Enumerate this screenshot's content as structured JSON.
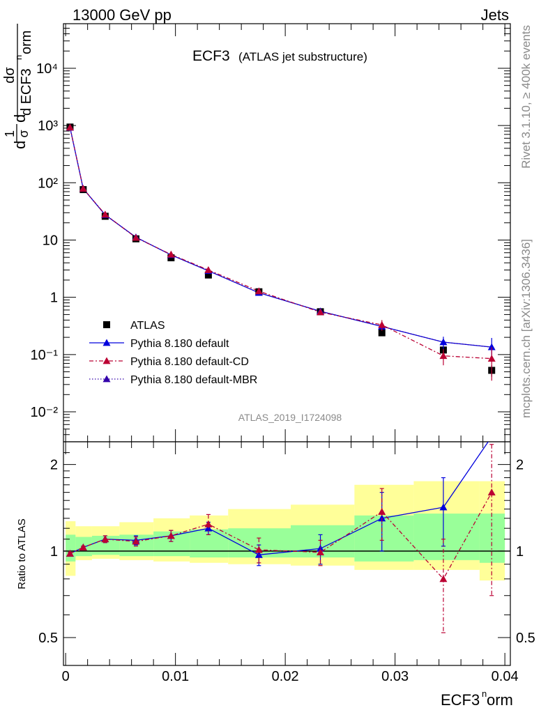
{
  "header": {
    "left": "13000 GeV pp",
    "right": "Jets"
  },
  "title": {
    "main": "ECF3",
    "sub": "(ATLAS jet substructure)"
  },
  "side_text": {
    "top": "Rivet 3.1.10, ≥ 400k events",
    "bottom": "mcplots.cern.ch [arXiv:1306.3436]"
  },
  "analysis_tag": "ATLAS_2019_I1724098",
  "chart_data": [
    {
      "type": "scatter",
      "panel": "main",
      "ylabel_lines": [
        "1",
        "σ",
        "dσ",
        "d ECF3",
        "n",
        "orm"
      ],
      "yscale": "log",
      "ylim": [
        0.003,
        60000
      ],
      "y_tick_labels": [
        "10⁻²",
        "10⁻¹",
        "1",
        "10",
        "10²",
        "10³",
        "10⁴"
      ],
      "x": [
        0.0004,
        0.0016,
        0.0036,
        0.0064,
        0.0096,
        0.013,
        0.0176,
        0.0232,
        0.0288,
        0.0344,
        0.0388
      ],
      "xerr_edges": [
        0.0,
        0.0009,
        0.0024,
        0.0049,
        0.008,
        0.0113,
        0.0148,
        0.0205,
        0.0263,
        0.0317,
        0.0377,
        0.04
      ],
      "series": [
        {
          "name": "ATLAS",
          "color": "#000000",
          "marker": "square",
          "values": [
            940,
            76,
            26,
            10.5,
            4.9,
            2.45,
            1.25,
            0.56,
            0.24,
            0.12,
            0.053
          ],
          "err_up": [
            40,
            3,
            1,
            0.4,
            0.2,
            0.1,
            0.06,
            0.03,
            0.02,
            0.02,
            0.012
          ],
          "err_down": [
            40,
            3,
            1,
            0.4,
            0.2,
            0.1,
            0.06,
            0.03,
            0.02,
            0.02,
            0.012
          ]
        },
        {
          "name": "Pythia 8.180 default",
          "color": "#0000dd",
          "marker": "triangle",
          "line": "solid",
          "values": [
            920,
            79,
            27.5,
            11.2,
            5.5,
            2.9,
            1.2,
            0.57,
            0.31,
            0.165,
            0.135
          ],
          "err_up": [
            10,
            1,
            0.5,
            0.3,
            0.2,
            0.1,
            0.05,
            0.03,
            0.03,
            0.04,
            0.06
          ],
          "err_down": [
            10,
            1,
            0.5,
            0.3,
            0.2,
            0.1,
            0.05,
            0.03,
            0.03,
            0.04,
            0.06
          ]
        },
        {
          "name": "Pythia 8.180 default-CD",
          "color": "#bb0033",
          "marker": "triangle",
          "line": "dashdot",
          "values": [
            925,
            79,
            28,
            11.0,
            5.6,
            3.0,
            1.28,
            0.55,
            0.33,
            0.095,
            0.085
          ],
          "err_up": [
            10,
            1,
            0.5,
            0.3,
            0.2,
            0.12,
            0.06,
            0.03,
            0.07,
            0.03,
            0.05
          ],
          "err_down": [
            10,
            1,
            0.5,
            0.3,
            0.2,
            0.12,
            0.06,
            0.03,
            0.07,
            0.03,
            0.05
          ]
        },
        {
          "name": "Pythia 8.180 default-MBR",
          "color": "#3300aa",
          "marker": "triangle",
          "line": "dotted",
          "values": [
            920,
            79,
            27.5,
            11.2,
            5.5,
            2.9,
            1.2,
            0.57,
            0.31,
            0.165,
            0.135
          ],
          "err_up": [],
          "err_down": []
        }
      ],
      "legend_position": "lower-left"
    },
    {
      "type": "line",
      "panel": "ratio",
      "ylabel": "Ratio to ATLAS",
      "yscale": "log",
      "ylim": [
        0.4,
        2.4
      ],
      "y_tick_labels": [
        "0.5",
        "1",
        "2"
      ],
      "xlim": [
        -0.0002,
        0.0405
      ],
      "x_tick_labels": [
        "0",
        "0.01",
        "0.02",
        "0.03",
        "0.04"
      ],
      "xlabel_main": "ECF3",
      "xlabel_sup": "n",
      "xlabel_tail": "orm",
      "band_edges": [
        0.0,
        0.0009,
        0.0024,
        0.0049,
        0.008,
        0.0113,
        0.0148,
        0.0205,
        0.0263,
        0.0317,
        0.0377,
        0.04
      ],
      "band_green": [
        [
          0.92,
          1.14
        ],
        [
          0.96,
          1.12
        ],
        [
          0.97,
          1.13
        ],
        [
          0.96,
          1.14
        ],
        [
          0.96,
          1.17
        ],
        [
          0.95,
          1.19
        ],
        [
          0.95,
          1.2
        ],
        [
          0.95,
          1.23
        ],
        [
          0.92,
          1.33
        ],
        [
          0.93,
          1.35
        ],
        [
          0.91,
          1.35
        ]
      ],
      "band_yellow": [
        [
          0.82,
          1.27
        ],
        [
          0.93,
          1.22
        ],
        [
          0.94,
          1.22
        ],
        [
          0.93,
          1.26
        ],
        [
          0.92,
          1.3
        ],
        [
          0.91,
          1.33
        ],
        [
          0.9,
          1.4
        ],
        [
          0.89,
          1.45
        ],
        [
          0.86,
          1.7
        ],
        [
          0.86,
          1.75
        ],
        [
          0.79,
          1.75
        ]
      ],
      "series": [
        {
          "name": "Pythia 8.180 default",
          "color": "#0000dd",
          "line": "solid",
          "values": [
            0.98,
            1.03,
            1.1,
            1.09,
            1.13,
            1.2,
            0.97,
            1.02,
            1.3,
            1.42,
            2.5
          ],
          "err_up": [
            0.01,
            0.01,
            0.03,
            0.04,
            0.05,
            0.06,
            0.08,
            0.12,
            0.3,
            0.38,
            0.0
          ],
          "err_down": [
            0.01,
            0.01,
            0.03,
            0.04,
            0.05,
            0.06,
            0.08,
            0.12,
            0.3,
            0.38,
            0.0
          ]
        },
        {
          "name": "Pythia 8.180 default-CD",
          "color": "#bb0033",
          "line": "dashdot",
          "values": [
            0.98,
            1.03,
            1.1,
            1.08,
            1.13,
            1.24,
            1.01,
            0.99,
            1.37,
            0.8,
            1.6
          ],
          "err_up": [
            0.01,
            0.01,
            0.03,
            0.04,
            0.05,
            0.1,
            0.1,
            0.1,
            0.28,
            0.3,
            0.75
          ],
          "err_down": [
            0.01,
            0.01,
            0.03,
            0.04,
            0.05,
            0.1,
            0.1,
            0.1,
            0.28,
            0.28,
            0.9
          ]
        }
      ]
    }
  ]
}
